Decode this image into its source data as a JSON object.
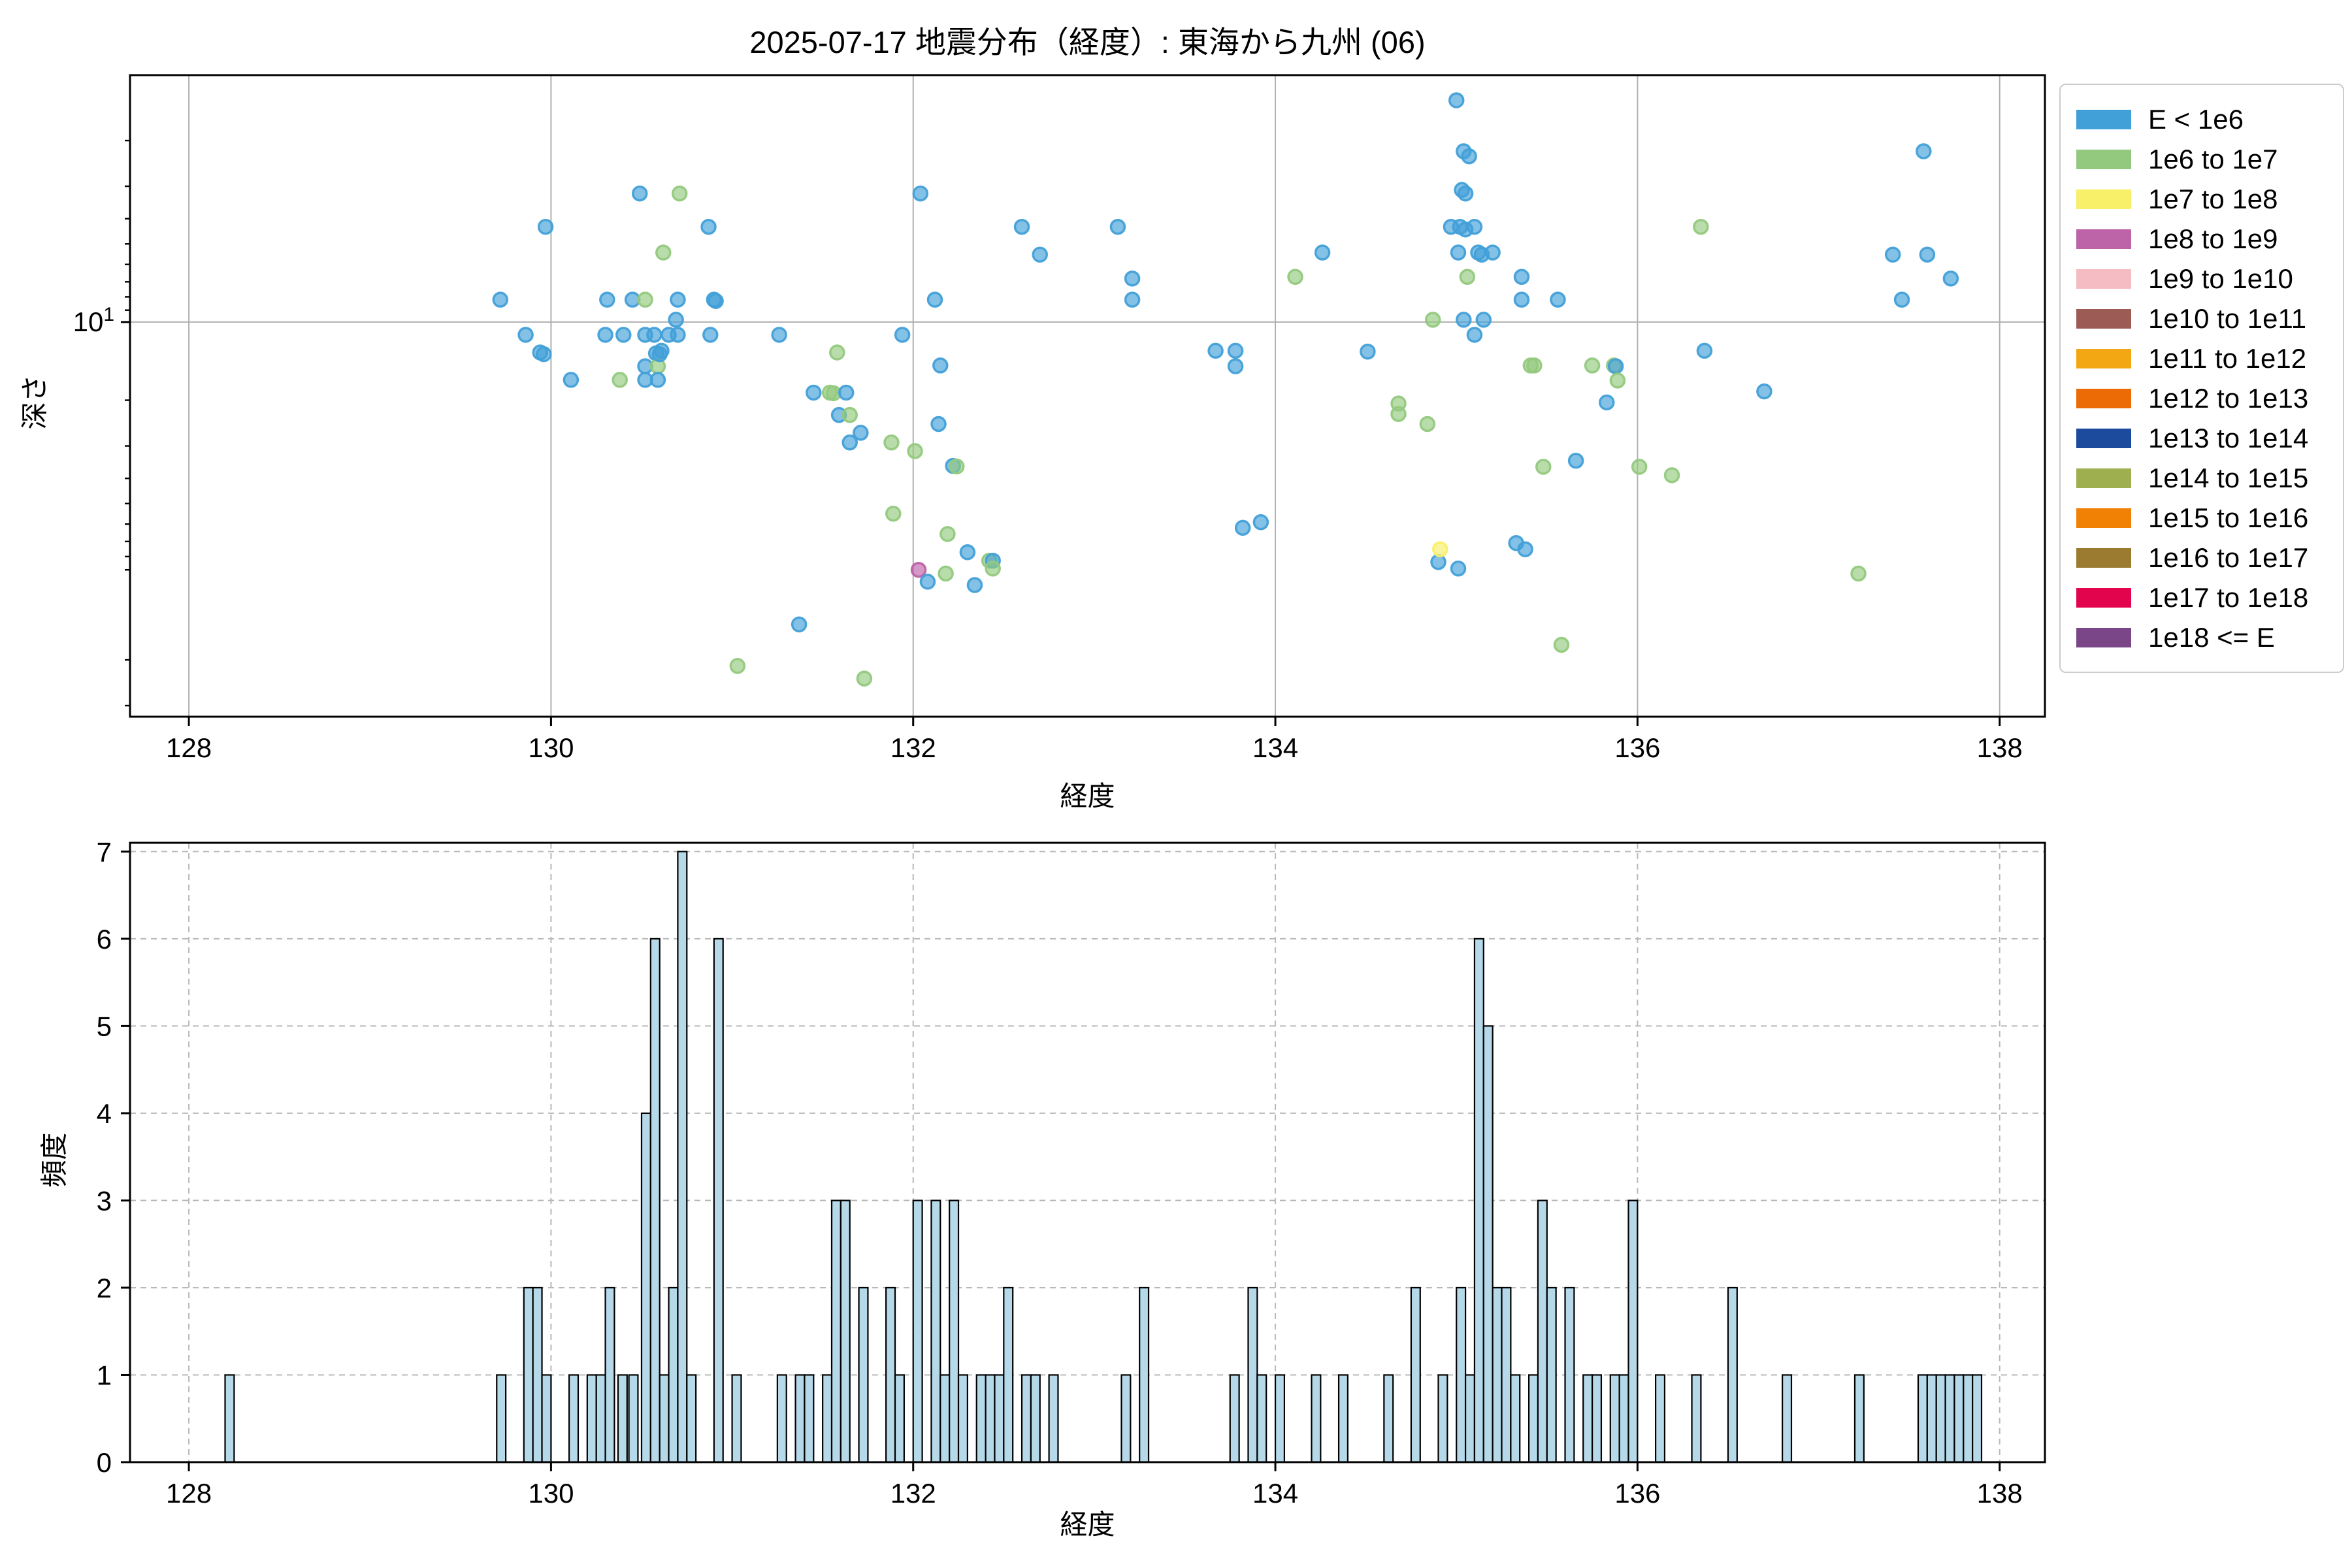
{
  "figure": {
    "title": "2025-07-17 地震分布（経度）: 東海から九州 (06)",
    "background": "#ffffff"
  },
  "legend": {
    "items": [
      {
        "label": "E < 1e6",
        "color": "#42a0d8"
      },
      {
        "label": "1e6 to 1e7",
        "color": "#93c97e"
      },
      {
        "label": "1e7 to 1e8",
        "color": "#f8f069"
      },
      {
        "label": "1e8 to 1e9",
        "color": "#bd63a8"
      },
      {
        "label": "1e9 to 1e10",
        "color": "#f5bdc3"
      },
      {
        "label": "1e10 to 1e11",
        "color": "#9c5b55"
      },
      {
        "label": "1e11 to 1e12",
        "color": "#f3a712"
      },
      {
        "label": "1e12 to 1e13",
        "color": "#ec6b05"
      },
      {
        "label": "1e13 to 1e14",
        "color": "#1c4a9c"
      },
      {
        "label": "1e14 to 1e15",
        "color": "#9daf4f"
      },
      {
        "label": "1e15 to 1e16",
        "color": "#f08104"
      },
      {
        "label": "1e16 to 1e17",
        "color": "#9a7b2f"
      },
      {
        "label": "1e17 to 1e18",
        "color": "#e3044e"
      },
      {
        "label": "1e18 <= E",
        "color": "#7b4687"
      }
    ]
  },
  "chart_data": [
    {
      "type": "scatter",
      "name": "depth-by-longitude",
      "xlabel": "経度",
      "ylabel": "深さ",
      "xlim": [
        127.675,
        138.25
      ],
      "xticks": [
        128,
        130,
        132,
        134,
        136,
        138
      ],
      "y_scale": "log",
      "y_inverted": true,
      "ylim": [
        1.12,
        331
      ],
      "ytick_major": {
        "value": 10,
        "label_base": "10",
        "label_exp": "1"
      },
      "y_minor_ticks": [
        2,
        3,
        4,
        5,
        6,
        7,
        8,
        9,
        20,
        30,
        40,
        50,
        60,
        70,
        80,
        90,
        200,
        300
      ],
      "grid": "solid",
      "marker_alpha": 0.65,
      "points": [
        [
          129.72,
          8.2,
          0
        ],
        [
          129.86,
          11.2,
          0
        ],
        [
          129.94,
          13.1,
          0
        ],
        [
          129.96,
          13.3,
          0
        ],
        [
          129.97,
          4.3,
          0
        ],
        [
          130.11,
          16.7,
          0
        ],
        [
          130.3,
          11.2,
          0
        ],
        [
          130.31,
          8.2,
          0
        ],
        [
          130.38,
          16.7,
          1
        ],
        [
          130.4,
          11.2,
          0
        ],
        [
          130.45,
          8.2,
          0
        ],
        [
          130.49,
          3.2,
          0
        ],
        [
          130.52,
          8.2,
          1
        ],
        [
          130.52,
          11.2,
          0
        ],
        [
          130.52,
          14.8,
          0
        ],
        [
          130.52,
          16.7,
          0
        ],
        [
          130.57,
          11.2,
          0
        ],
        [
          130.58,
          13.2,
          0
        ],
        [
          130.59,
          14.8,
          1
        ],
        [
          130.59,
          16.7,
          0
        ],
        [
          130.6,
          13.3,
          0
        ],
        [
          130.62,
          5.4,
          1
        ],
        [
          130.65,
          11.2,
          0
        ],
        [
          130.69,
          9.8,
          0
        ],
        [
          130.7,
          8.2,
          0
        ],
        [
          130.7,
          11.2,
          0
        ],
        [
          130.71,
          3.2,
          1
        ],
        [
          130.87,
          4.3,
          0
        ],
        [
          130.88,
          11.2,
          0
        ],
        [
          130.9,
          8.2,
          0
        ],
        [
          130.91,
          8.3,
          0
        ],
        [
          130.61,
          12.9,
          0
        ],
        [
          131.03,
          211,
          1
        ],
        [
          131.26,
          11.2,
          0
        ],
        [
          131.37,
          146,
          0
        ],
        [
          131.45,
          18.7,
          0
        ],
        [
          131.54,
          18.7,
          1
        ],
        [
          131.56,
          18.8,
          1
        ],
        [
          131.58,
          13.1,
          1
        ],
        [
          131.59,
          22.8,
          0
        ],
        [
          131.63,
          18.7,
          0
        ],
        [
          131.65,
          22.8,
          1
        ],
        [
          131.65,
          29.1,
          0
        ],
        [
          131.71,
          26.7,
          0
        ],
        [
          131.73,
          236,
          1
        ],
        [
          131.88,
          29.1,
          1
        ],
        [
          131.89,
          54.7,
          1
        ],
        [
          131.94,
          11.2,
          0
        ],
        [
          132.01,
          31.4,
          1
        ],
        [
          132.03,
          90,
          3
        ],
        [
          132.04,
          3.2,
          0
        ],
        [
          132.08,
          100,
          0
        ],
        [
          132.12,
          8.2,
          0
        ],
        [
          132.14,
          24.7,
          0
        ],
        [
          132.15,
          14.7,
          0
        ],
        [
          132.18,
          93,
          1
        ],
        [
          132.19,
          65.5,
          1
        ],
        [
          132.22,
          35.8,
          0
        ],
        [
          132.24,
          36,
          1
        ],
        [
          132.3,
          77,
          0
        ],
        [
          132.34,
          103,
          0
        ],
        [
          132.42,
          83,
          1
        ],
        [
          132.44,
          83,
          0
        ],
        [
          132.44,
          89,
          1
        ],
        [
          132.6,
          4.3,
          0
        ],
        [
          132.7,
          5.5,
          0
        ],
        [
          133.13,
          4.3,
          0
        ],
        [
          133.21,
          6.8,
          0
        ],
        [
          133.21,
          8.2,
          0
        ],
        [
          133.67,
          12.9,
          0
        ],
        [
          133.78,
          12.9,
          0
        ],
        [
          133.78,
          14.8,
          0
        ],
        [
          133.82,
          62,
          0
        ],
        [
          133.92,
          59,
          0
        ],
        [
          134.11,
          6.7,
          1
        ],
        [
          134.26,
          5.4,
          0
        ],
        [
          134.51,
          13,
          0
        ],
        [
          134.68,
          20.6,
          1
        ],
        [
          134.68,
          22.6,
          1
        ],
        [
          134.84,
          24.7,
          1
        ],
        [
          134.87,
          9.8,
          1
        ],
        [
          134.9,
          84,
          0
        ],
        [
          134.91,
          75,
          2
        ],
        [
          134.97,
          4.3,
          0
        ],
        [
          135.0,
          1.4,
          0
        ],
        [
          135.01,
          5.4,
          0
        ],
        [
          135.01,
          89,
          0
        ],
        [
          135.02,
          4.3,
          0
        ],
        [
          135.03,
          3.1,
          0
        ],
        [
          135.04,
          2.2,
          0
        ],
        [
          135.04,
          9.8,
          0
        ],
        [
          135.05,
          3.2,
          0
        ],
        [
          135.05,
          4.4,
          0
        ],
        [
          135.06,
          6.7,
          1
        ],
        [
          135.07,
          2.3,
          0
        ],
        [
          135.1,
          4.3,
          0
        ],
        [
          135.1,
          11.2,
          0
        ],
        [
          135.12,
          5.4,
          0
        ],
        [
          135.14,
          5.5,
          0
        ],
        [
          135.15,
          9.8,
          0
        ],
        [
          135.2,
          5.4,
          0
        ],
        [
          135.33,
          71,
          0
        ],
        [
          135.36,
          6.7,
          0
        ],
        [
          135.36,
          8.2,
          0
        ],
        [
          135.38,
          75,
          0
        ],
        [
          135.41,
          14.7,
          1
        ],
        [
          135.43,
          14.7,
          1
        ],
        [
          135.48,
          36.1,
          1
        ],
        [
          135.56,
          8.2,
          0
        ],
        [
          135.58,
          175,
          1
        ],
        [
          135.66,
          34.2,
          0
        ],
        [
          135.75,
          14.7,
          1
        ],
        [
          135.83,
          20.4,
          0
        ],
        [
          135.87,
          14.7,
          1
        ],
        [
          135.88,
          14.8,
          0
        ],
        [
          135.89,
          16.8,
          1
        ],
        [
          136.01,
          36.1,
          1
        ],
        [
          136.19,
          38.9,
          1
        ],
        [
          136.35,
          4.3,
          1
        ],
        [
          136.37,
          12.9,
          0
        ],
        [
          136.7,
          18.5,
          0
        ],
        [
          137.22,
          93,
          1
        ],
        [
          137.41,
          5.5,
          0
        ],
        [
          137.46,
          8.2,
          0
        ],
        [
          137.58,
          2.2,
          0
        ],
        [
          137.6,
          5.5,
          0
        ],
        [
          137.73,
          6.8,
          0
        ]
      ]
    },
    {
      "type": "bar",
      "name": "frequency-histogram",
      "xlabel": "経度",
      "ylabel": "頻度",
      "xlim": [
        127.675,
        138.25
      ],
      "xticks": [
        128,
        130,
        132,
        134,
        136,
        138
      ],
      "ylim": [
        0,
        7.1
      ],
      "yticks": [
        0,
        1,
        2,
        3,
        4,
        5,
        6,
        7
      ],
      "grid": "dashed",
      "bin_width": 0.05,
      "bar_color": "#b5d9e8",
      "bar_edge": "#000000",
      "bars": [
        [
          128.2,
          1
        ],
        [
          129.7,
          1
        ],
        [
          129.85,
          2
        ],
        [
          129.9,
          2
        ],
        [
          129.95,
          1
        ],
        [
          130.1,
          1
        ],
        [
          130.2,
          1
        ],
        [
          130.25,
          1
        ],
        [
          130.3,
          2
        ],
        [
          130.37,
          1
        ],
        [
          130.43,
          1
        ],
        [
          130.5,
          4
        ],
        [
          130.55,
          6
        ],
        [
          130.6,
          1
        ],
        [
          130.65,
          2
        ],
        [
          130.7,
          7
        ],
        [
          130.75,
          1
        ],
        [
          130.9,
          6
        ],
        [
          131.0,
          1
        ],
        [
          131.25,
          1
        ],
        [
          131.35,
          1
        ],
        [
          131.4,
          1
        ],
        [
          131.5,
          1
        ],
        [
          131.55,
          3
        ],
        [
          131.6,
          3
        ],
        [
          131.7,
          2
        ],
        [
          131.85,
          2
        ],
        [
          131.9,
          1
        ],
        [
          132.0,
          3
        ],
        [
          132.1,
          3
        ],
        [
          132.15,
          1
        ],
        [
          132.2,
          3
        ],
        [
          132.25,
          1
        ],
        [
          132.35,
          1
        ],
        [
          132.4,
          1
        ],
        [
          132.45,
          1
        ],
        [
          132.5,
          2
        ],
        [
          132.6,
          1
        ],
        [
          132.65,
          1
        ],
        [
          132.75,
          1
        ],
        [
          133.15,
          1
        ],
        [
          133.25,
          2
        ],
        [
          133.75,
          1
        ],
        [
          133.85,
          2
        ],
        [
          133.9,
          1
        ],
        [
          134.0,
          1
        ],
        [
          134.2,
          1
        ],
        [
          134.35,
          1
        ],
        [
          134.6,
          1
        ],
        [
          134.75,
          2
        ],
        [
          134.9,
          1
        ],
        [
          135.0,
          2
        ],
        [
          135.05,
          1
        ],
        [
          135.1,
          6
        ],
        [
          135.15,
          5
        ],
        [
          135.2,
          2
        ],
        [
          135.25,
          2
        ],
        [
          135.3,
          1
        ],
        [
          135.4,
          1
        ],
        [
          135.45,
          3
        ],
        [
          135.5,
          2
        ],
        [
          135.6,
          2
        ],
        [
          135.7,
          1
        ],
        [
          135.75,
          1
        ],
        [
          135.85,
          1
        ],
        [
          135.9,
          1
        ],
        [
          135.95,
          3
        ],
        [
          136.1,
          1
        ],
        [
          136.3,
          1
        ],
        [
          136.5,
          2
        ],
        [
          136.8,
          1
        ],
        [
          137.2,
          1
        ],
        [
          137.55,
          1
        ],
        [
          137.6,
          1
        ],
        [
          137.65,
          1
        ],
        [
          137.7,
          1
        ],
        [
          137.75,
          1
        ],
        [
          137.8,
          1
        ],
        [
          137.85,
          1
        ]
      ]
    }
  ]
}
